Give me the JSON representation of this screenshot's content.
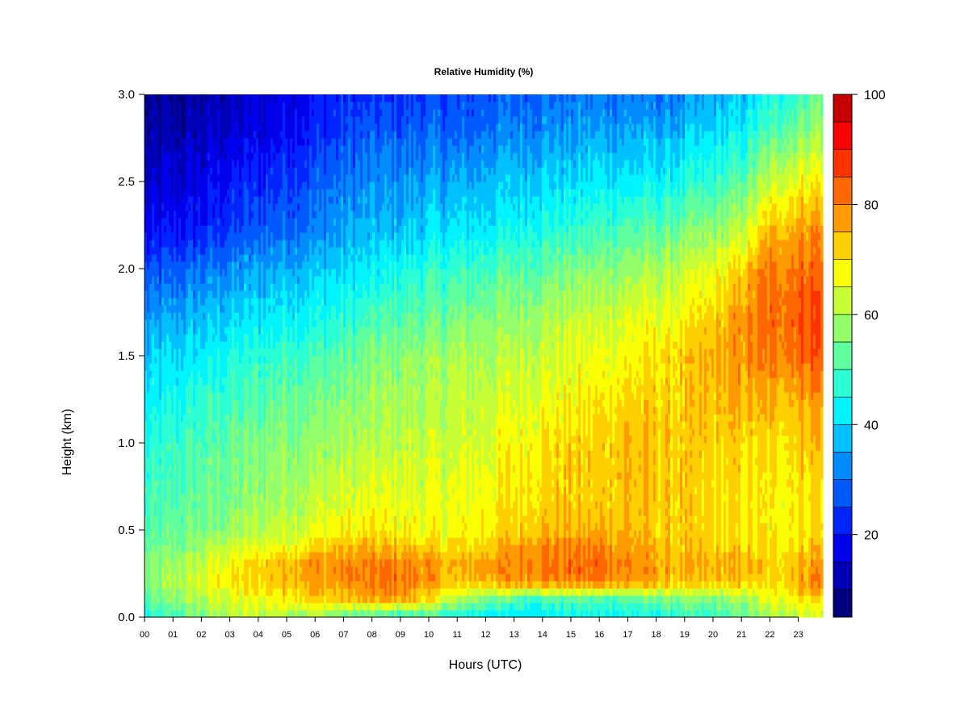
{
  "chart_data": {
    "type": "heatmap",
    "title": "Relative Humidity (%)",
    "xlabel": "Hours (UTC)",
    "ylabel": "Height (km)",
    "x_ticks": [
      "00",
      "01",
      "02",
      "03",
      "04",
      "05",
      "06",
      "07",
      "08",
      "09",
      "10",
      "11",
      "12",
      "13",
      "14",
      "15",
      "16",
      "17",
      "18",
      "19",
      "20",
      "21",
      "22",
      "23"
    ],
    "xlim": [
      0,
      23.85
    ],
    "y_ticks": [
      "0.0",
      "0.5",
      "1.0",
      "1.5",
      "2.0",
      "2.5",
      "3.0"
    ],
    "ylim": [
      0,
      3.0
    ],
    "colorbar": {
      "ticks": [
        "20",
        "40",
        "60",
        "80",
        "100"
      ],
      "range": [
        5,
        100
      ],
      "levels": [
        5,
        10,
        15,
        20,
        25,
        30,
        35,
        40,
        45,
        50,
        55,
        60,
        65,
        70,
        75,
        80,
        85,
        90,
        95,
        100
      ],
      "colors": [
        "#00007F",
        "#0000B6",
        "#0000ED",
        "#0024FF",
        "#0058FF",
        "#008CFF",
        "#00C0FF",
        "#00F4FF",
        "#2BFFD3",
        "#5FFF9F",
        "#93FF6B",
        "#C7FF37",
        "#FBFF03",
        "#FFCF00",
        "#FF9B00",
        "#FF6700",
        "#FF3300",
        "#FD0000",
        "#C60000",
        "#7F0000"
      ]
    },
    "heights_km": [
      0.0,
      0.1,
      0.2,
      0.3,
      0.4,
      0.5,
      0.7,
      1.0,
      1.2,
      1.5,
      1.7,
      2.0,
      2.2,
      2.5,
      2.8,
      3.0
    ],
    "hours": [
      0,
      1,
      2,
      3,
      4,
      5,
      6,
      7,
      8,
      9,
      10,
      11,
      12,
      13,
      14,
      15,
      16,
      17,
      18,
      19,
      20,
      21,
      22,
      23,
      23.85
    ],
    "values": [
      [
        45,
        48,
        55,
        60,
        62,
        60,
        58,
        50,
        47,
        46,
        48,
        43,
        42,
        40,
        42,
        44,
        44,
        43,
        45,
        47,
        48,
        52,
        58,
        62,
        65
      ],
      [
        50,
        55,
        60,
        64,
        67,
        70,
        72,
        73,
        75,
        75,
        70,
        60,
        55,
        50,
        50,
        50,
        50,
        52,
        53,
        55,
        55,
        58,
        65,
        70,
        72
      ],
      [
        55,
        60,
        65,
        70,
        72,
        75,
        77,
        78,
        80,
        82,
        78,
        72,
        75,
        78,
        80,
        80,
        80,
        78,
        75,
        72,
        72,
        73,
        70,
        76,
        82
      ],
      [
        55,
        58,
        62,
        68,
        72,
        77,
        78,
        80,
        80,
        80,
        78,
        75,
        78,
        80,
        82,
        82,
        83,
        80,
        77,
        75,
        75,
        75,
        72,
        76,
        80
      ],
      [
        52,
        55,
        60,
        63,
        65,
        68,
        72,
        75,
        75,
        75,
        72,
        70,
        72,
        77,
        80,
        80,
        80,
        77,
        75,
        72,
        72,
        72,
        70,
        72,
        75
      ],
      [
        50,
        52,
        55,
        58,
        60,
        63,
        65,
        68,
        70,
        68,
        67,
        67,
        70,
        72,
        75,
        75,
        75,
        75,
        72,
        72,
        70,
        70,
        68,
        70,
        72
      ],
      [
        48,
        50,
        53,
        55,
        58,
        60,
        62,
        63,
        65,
        65,
        65,
        65,
        68,
        70,
        72,
        72,
        72,
        75,
        73,
        72,
        70,
        70,
        68,
        70,
        72
      ],
      [
        45,
        48,
        50,
        53,
        55,
        57,
        58,
        60,
        60,
        62,
        63,
        63,
        65,
        68,
        70,
        72,
        72,
        75,
        73,
        72,
        72,
        72,
        70,
        73,
        75
      ],
      [
        42,
        45,
        48,
        50,
        52,
        55,
        55,
        57,
        58,
        60,
        60,
        62,
        63,
        65,
        67,
        68,
        70,
        72,
        72,
        72,
        73,
        75,
        73,
        75,
        78
      ],
      [
        38,
        40,
        42,
        45,
        47,
        50,
        50,
        52,
        55,
        57,
        58,
        60,
        60,
        62,
        63,
        65,
        66,
        68,
        70,
        72,
        75,
        78,
        80,
        83,
        85
      ],
      [
        33,
        36,
        38,
        40,
        42,
        44,
        45,
        47,
        50,
        52,
        53,
        55,
        57,
        58,
        60,
        62,
        63,
        65,
        66,
        68,
        72,
        78,
        82,
        85,
        87
      ],
      [
        25,
        27,
        30,
        32,
        35,
        37,
        38,
        40,
        42,
        45,
        47,
        48,
        50,
        52,
        53,
        55,
        57,
        58,
        60,
        62,
        65,
        72,
        80,
        82,
        83
      ],
      [
        18,
        20,
        22,
        25,
        28,
        30,
        32,
        35,
        37,
        38,
        40,
        42,
        43,
        45,
        47,
        48,
        50,
        52,
        53,
        55,
        58,
        62,
        75,
        78,
        80
      ],
      [
        13,
        15,
        17,
        20,
        22,
        25,
        27,
        30,
        32,
        33,
        35,
        35,
        37,
        38,
        40,
        40,
        42,
        42,
        43,
        45,
        48,
        52,
        62,
        68,
        70
      ],
      [
        10,
        11,
        13,
        15,
        17,
        20,
        22,
        25,
        27,
        27,
        28,
        28,
        30,
        32,
        33,
        33,
        35,
        35,
        35,
        37,
        40,
        42,
        50,
        55,
        60
      ],
      [
        8,
        9,
        11,
        13,
        15,
        17,
        20,
        22,
        23,
        23,
        25,
        25,
        27,
        28,
        30,
        30,
        30,
        30,
        30,
        32,
        35,
        38,
        45,
        50,
        55
      ]
    ]
  }
}
